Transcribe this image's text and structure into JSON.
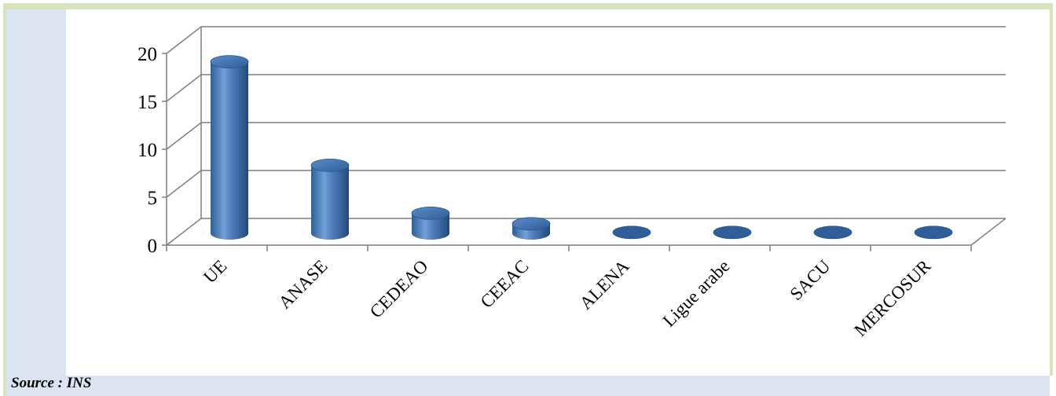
{
  "chart_data": {
    "type": "bar",
    "style": "3d-cylinder",
    "categories": [
      "UE",
      "ANASE",
      "CEDEAO",
      "CEEAC",
      "ALENA",
      "Ligue arabe",
      "SACU",
      "MERCOSUR"
    ],
    "values": [
      17.9,
      7.1,
      2.1,
      1.0,
      0.1,
      0.1,
      0.1,
      0.1
    ],
    "yticks": [
      "0",
      "5",
      "10",
      "15",
      "20"
    ],
    "ylim": [
      0,
      20
    ],
    "grid": true,
    "legend": "none",
    "title": "",
    "xlabel": "",
    "ylabel": "",
    "colors": {
      "bar": "#4f81bd",
      "bar_dark": "#2c5a8f",
      "bar_light": "#8db3e2",
      "grid": "#7f7f7f",
      "left_band": "#dbe5f1",
      "border": "#d7e4bd"
    }
  },
  "source": "Source : INS"
}
